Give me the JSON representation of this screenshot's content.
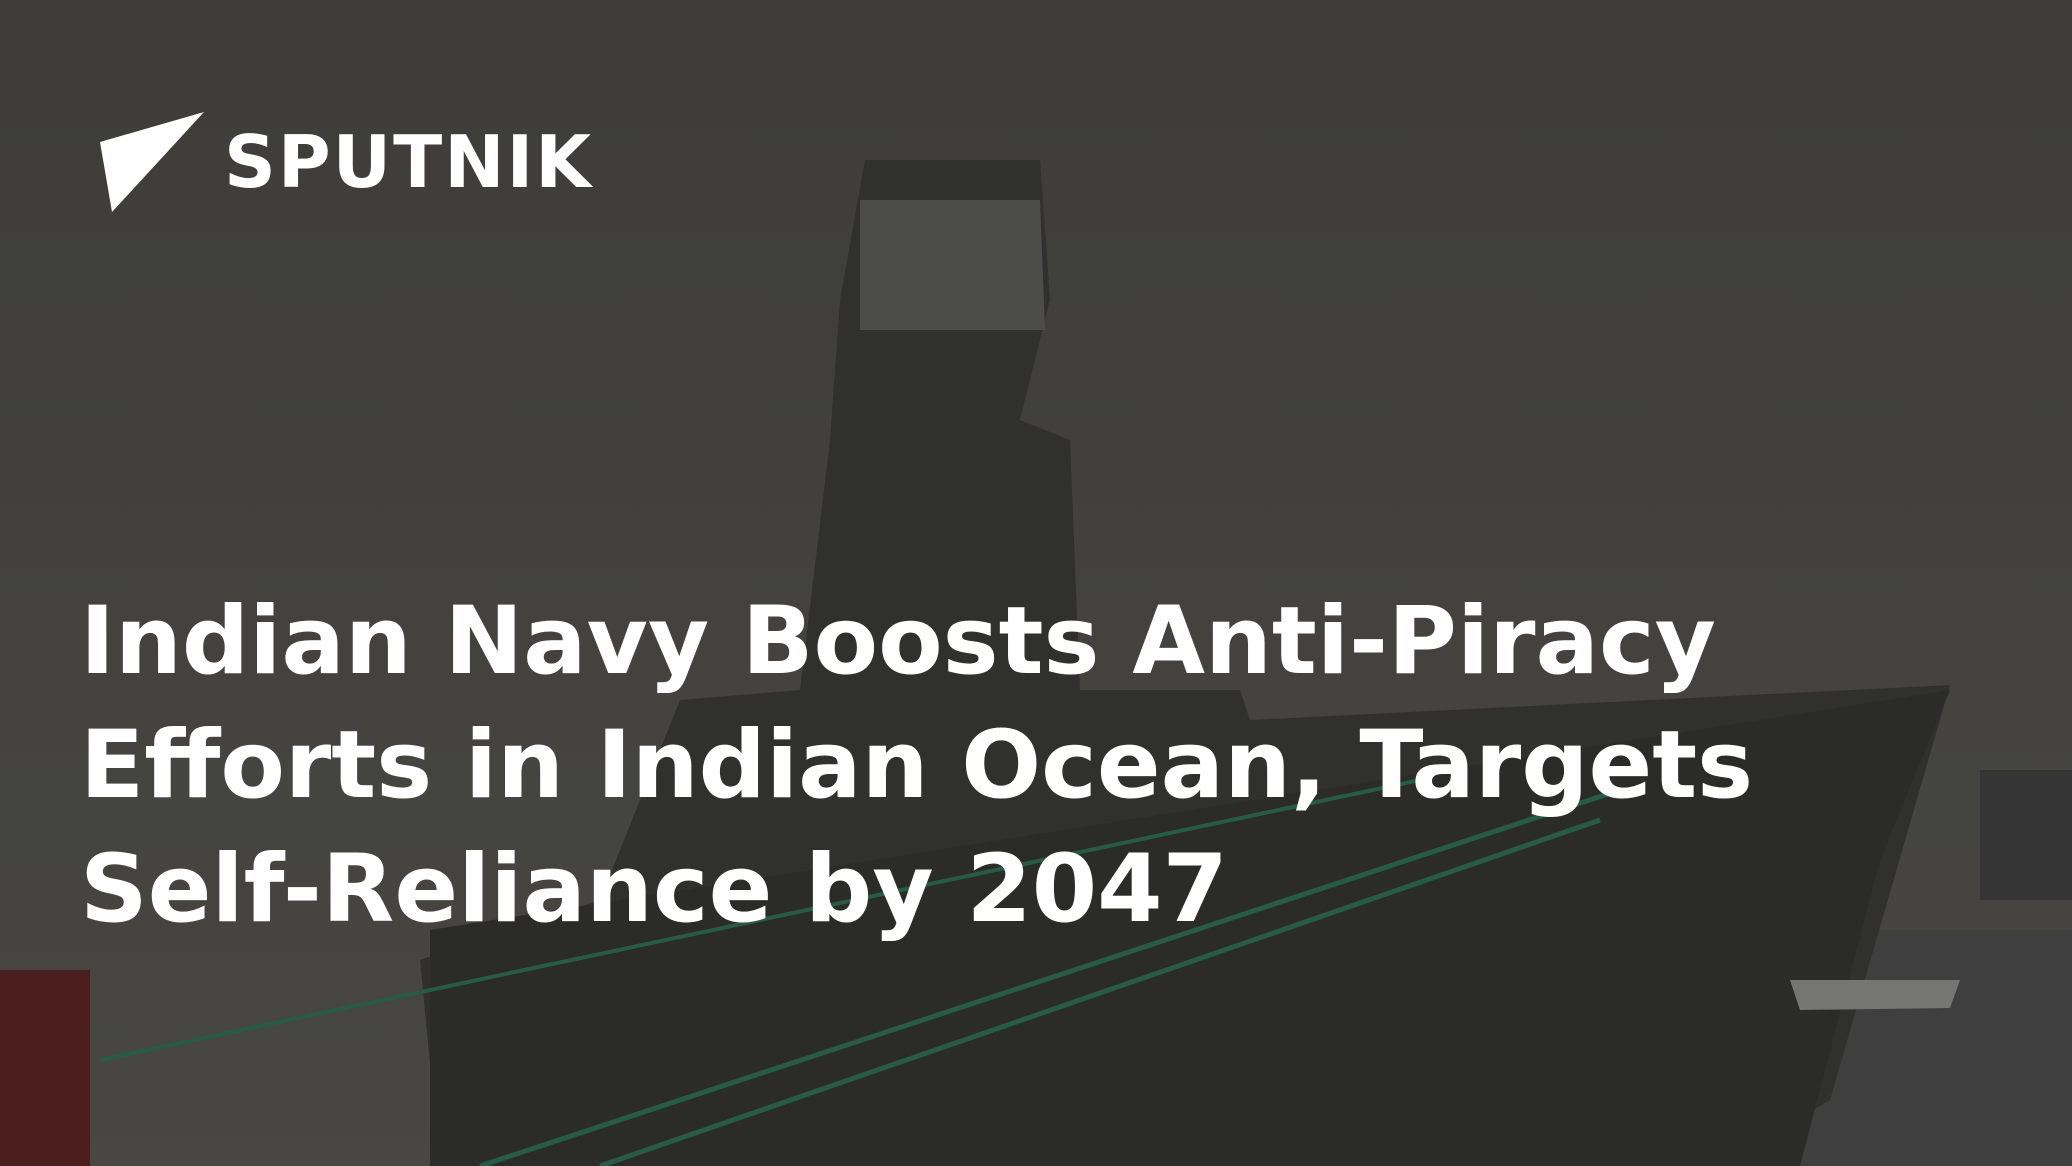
{
  "brand": "SPUTNIK",
  "headline": "Indian Navy Boosts Anti-Piracy Efforts in Indian Ocean, Targets Self-Reliance by 2047"
}
